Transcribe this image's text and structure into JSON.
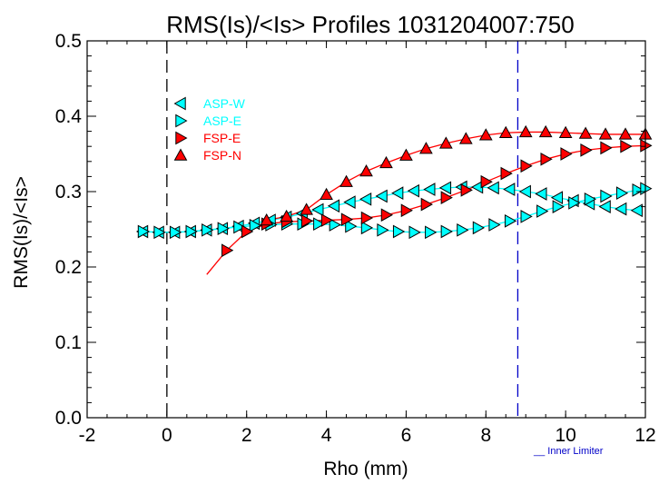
{
  "chart_data": {
    "type": "line",
    "title": "RMS(Is)/<Is> Profiles 1031204007:750",
    "xlabel": "Rho (mm)",
    "ylabel": "RMS(Is)/<Is>",
    "xlim": [
      -2,
      12
    ],
    "ylim": [
      0.0,
      0.5
    ],
    "xticks": [
      "-2",
      "0",
      "2",
      "4",
      "6",
      "8",
      "10",
      "12"
    ],
    "yticks": [
      "0.0",
      "0.1",
      "0.2",
      "0.3",
      "0.4",
      "0.5"
    ],
    "grid": false,
    "legend_position": "top-left",
    "reference_lines": [
      {
        "x": 0,
        "color": "#000000",
        "style": "dashed"
      },
      {
        "x": 8.8,
        "color": "#0000c8",
        "style": "dashed",
        "label": "__ Inner Limiter"
      }
    ],
    "series": [
      {
        "name": "ASP-W",
        "color": "#00ffff",
        "marker": "triangle-left",
        "points": [
          [
            -0.6,
            0.247
          ],
          [
            -0.2,
            0.246
          ],
          [
            0.2,
            0.246
          ],
          [
            0.6,
            0.247
          ],
          [
            1.0,
            0.249
          ],
          [
            1.4,
            0.251
          ],
          [
            1.8,
            0.254
          ],
          [
            2.2,
            0.258
          ],
          [
            2.6,
            0.262
          ],
          [
            3.0,
            0.266
          ],
          [
            3.4,
            0.271
          ],
          [
            3.8,
            0.276
          ],
          [
            4.2,
            0.281
          ],
          [
            4.6,
            0.286
          ],
          [
            5.0,
            0.29
          ],
          [
            5.4,
            0.294
          ],
          [
            5.8,
            0.298
          ],
          [
            6.2,
            0.301
          ],
          [
            6.6,
            0.303
          ],
          [
            7.0,
            0.305
          ],
          [
            7.4,
            0.306
          ],
          [
            7.8,
            0.306
          ],
          [
            8.2,
            0.305
          ],
          [
            8.6,
            0.303
          ],
          [
            9.0,
            0.3
          ],
          [
            9.4,
            0.297
          ],
          [
            9.8,
            0.292
          ],
          [
            10.2,
            0.288
          ],
          [
            10.6,
            0.284
          ],
          [
            11.0,
            0.28
          ],
          [
            11.4,
            0.277
          ],
          [
            11.8,
            0.275
          ]
        ]
      },
      {
        "name": "ASP-E",
        "color": "#00ffff",
        "marker": "triangle-right",
        "points": [
          [
            -0.6,
            0.247
          ],
          [
            -0.2,
            0.246
          ],
          [
            0.2,
            0.246
          ],
          [
            0.6,
            0.247
          ],
          [
            1.0,
            0.249
          ],
          [
            1.4,
            0.251
          ],
          [
            1.8,
            0.253
          ],
          [
            2.2,
            0.255
          ],
          [
            2.6,
            0.256
          ],
          [
            3.0,
            0.257
          ],
          [
            3.4,
            0.257
          ],
          [
            3.8,
            0.257
          ],
          [
            4.2,
            0.256
          ],
          [
            4.6,
            0.254
          ],
          [
            5.0,
            0.252
          ],
          [
            5.4,
            0.249
          ],
          [
            5.8,
            0.247
          ],
          [
            6.2,
            0.246
          ],
          [
            6.6,
            0.246
          ],
          [
            7.0,
            0.247
          ],
          [
            7.4,
            0.249
          ],
          [
            7.8,
            0.252
          ],
          [
            8.2,
            0.256
          ],
          [
            8.6,
            0.261
          ],
          [
            9.0,
            0.267
          ],
          [
            9.4,
            0.274
          ],
          [
            9.8,
            0.28
          ],
          [
            10.2,
            0.285
          ],
          [
            10.6,
            0.29
          ],
          [
            11.0,
            0.294
          ],
          [
            11.4,
            0.298
          ],
          [
            11.8,
            0.302
          ],
          [
            12.0,
            0.304
          ]
        ]
      },
      {
        "name": "FSP-E",
        "color": "#ff0000",
        "marker": "triangle-right",
        "points": [
          [
            1.0,
            0.19
          ],
          [
            1.5,
            0.222
          ],
          [
            2.0,
            0.247
          ],
          [
            2.5,
            0.257
          ],
          [
            3.0,
            0.26
          ],
          [
            3.5,
            0.261
          ],
          [
            4.0,
            0.262
          ],
          [
            4.5,
            0.263
          ],
          [
            5.0,
            0.265
          ],
          [
            5.5,
            0.269
          ],
          [
            6.0,
            0.275
          ],
          [
            6.5,
            0.283
          ],
          [
            7.0,
            0.292
          ],
          [
            7.5,
            0.302
          ],
          [
            8.0,
            0.313
          ],
          [
            8.5,
            0.324
          ],
          [
            9.0,
            0.334
          ],
          [
            9.5,
            0.343
          ],
          [
            10.0,
            0.35
          ],
          [
            10.5,
            0.355
          ],
          [
            11.0,
            0.358
          ],
          [
            11.5,
            0.36
          ],
          [
            12.0,
            0.361
          ]
        ]
      },
      {
        "name": "FSP-N",
        "color": "#ff0000",
        "marker": "triangle-up",
        "points": [
          [
            2.5,
            0.262
          ],
          [
            3.0,
            0.267
          ],
          [
            3.5,
            0.276
          ],
          [
            4.0,
            0.296
          ],
          [
            4.5,
            0.313
          ],
          [
            5.0,
            0.327
          ],
          [
            5.5,
            0.338
          ],
          [
            6.0,
            0.348
          ],
          [
            6.5,
            0.357
          ],
          [
            7.0,
            0.364
          ],
          [
            7.5,
            0.37
          ],
          [
            8.0,
            0.375
          ],
          [
            8.5,
            0.378
          ],
          [
            9.0,
            0.379
          ],
          [
            9.5,
            0.379
          ],
          [
            10.0,
            0.378
          ],
          [
            10.5,
            0.377
          ],
          [
            11.0,
            0.376
          ],
          [
            11.5,
            0.376
          ],
          [
            12.0,
            0.376
          ]
        ]
      }
    ]
  }
}
